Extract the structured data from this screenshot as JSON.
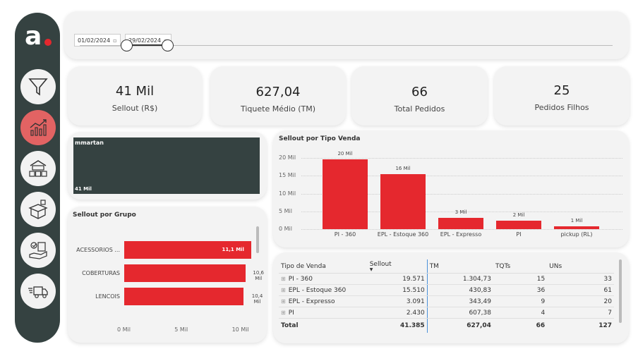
{
  "sidebar": {
    "logo": "a",
    "items": [
      {
        "name": "filter-icon"
      },
      {
        "name": "growth-chart-icon",
        "active": true
      },
      {
        "name": "warehouse-icon"
      },
      {
        "name": "box-icon"
      },
      {
        "name": "checklist-icon"
      },
      {
        "name": "delivery-truck-icon"
      }
    ]
  },
  "date_filter": {
    "start": "01/02/2024",
    "end": "29/02/2024"
  },
  "kpis": [
    {
      "value": "41 Mil",
      "label": "Sellout (R$)"
    },
    {
      "value": "627,04",
      "label": "Tiquete Médio (TM)"
    },
    {
      "value": "66",
      "label": "Total Pedidos"
    },
    {
      "value": "25",
      "label": "Pedidos Filhos"
    }
  ],
  "user_card": {
    "name": "mmartan",
    "value": "41 Mil"
  },
  "chart_grupo": {
    "type": "bar",
    "orientation": "horizontal",
    "title": "Sellout por Grupo",
    "categories": [
      "ACESSORIOS ...",
      "COBERTURAS",
      "LENCOIS"
    ],
    "values": [
      11.1,
      10.6,
      10.4
    ],
    "data_labels": [
      "11,1 Mil",
      "10,6 Mil",
      "10,4 Mil"
    ],
    "xticks": [
      "0 Mil",
      "5 Mil",
      "10 Mil"
    ],
    "xlim": [
      0,
      12.3
    ]
  },
  "chart_tipo": {
    "type": "bar",
    "title": "Sellout por Tipo Venda",
    "categories": [
      "PI - 360",
      "EPL - Estoque 360",
      "EPL - Expresso",
      "PI",
      "pickup (RL)"
    ],
    "values": [
      19.6,
      15.5,
      3.1,
      2.4,
      0.8
    ],
    "data_labels": [
      "20 Mil",
      "16 Mil",
      "3 Mil",
      "2 Mil",
      "1 Mil"
    ],
    "yticks": [
      "20 Mil",
      "15 Mil",
      "10 Mil",
      "5 Mil",
      "0 Mil"
    ],
    "ylim": [
      0,
      20
    ]
  },
  "table": {
    "headers": [
      "Tipo de Venda",
      "Sellout",
      "TM",
      "TQTs",
      "UNs"
    ],
    "rows": [
      [
        "PI - 360",
        "19.571",
        "1.304,73",
        "15",
        "33"
      ],
      [
        "EPL - Estoque 360",
        "15.510",
        "430,83",
        "36",
        "61"
      ],
      [
        "EPL - Expresso",
        "3.091",
        "343,49",
        "9",
        "20"
      ],
      [
        "PI",
        "2.430",
        "607,38",
        "4",
        "7"
      ]
    ],
    "total": [
      "Total",
      "41.385",
      "627,04",
      "66",
      "127"
    ]
  },
  "colors": {
    "accent": "#e5282e",
    "sidebar": "#354241",
    "card": "#f3f3f3"
  }
}
